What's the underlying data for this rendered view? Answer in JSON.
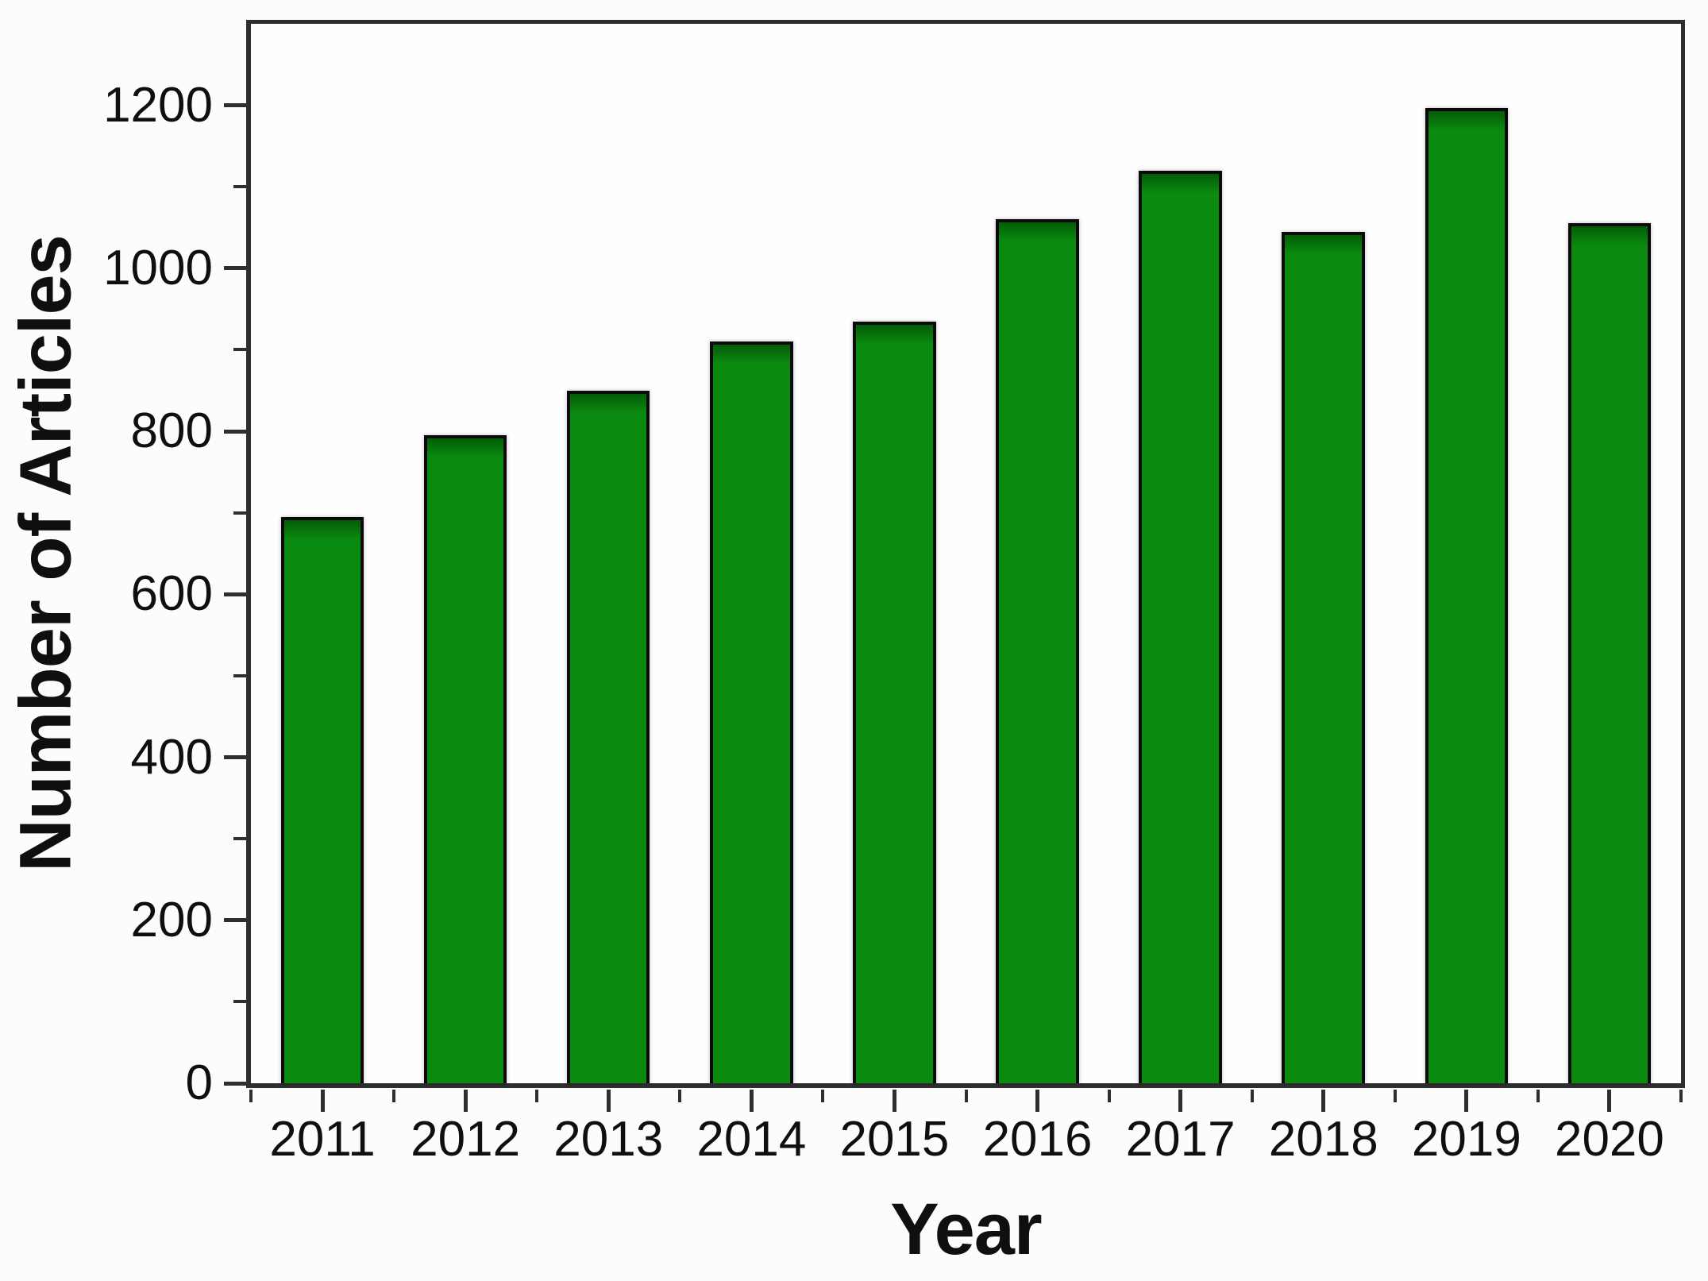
{
  "chart_data": {
    "type": "bar",
    "title": "",
    "xlabel": "Year",
    "ylabel": "Number of Articles",
    "categories": [
      "2011",
      "2012",
      "2013",
      "2014",
      "2015",
      "2016",
      "2017",
      "2018",
      "2019",
      "2020"
    ],
    "values": [
      695,
      795,
      850,
      910,
      935,
      1060,
      1120,
      1045,
      1197,
      1055
    ],
    "ylim": [
      0,
      1300
    ],
    "y_major_ticks": [
      0,
      200,
      400,
      600,
      800,
      1000,
      1200
    ],
    "y_minor_ticks": [
      100,
      300,
      500,
      700,
      900,
      1100
    ],
    "grid": "off",
    "legend": "none",
    "colors": {
      "bar_fill": "#0a8a0e",
      "bar_fill_dark": "#045c08",
      "bar_border": "#0b0b0b",
      "axis": "#2e2e2e",
      "text": "#0f0f0f",
      "background": "#fcfcfc"
    }
  }
}
